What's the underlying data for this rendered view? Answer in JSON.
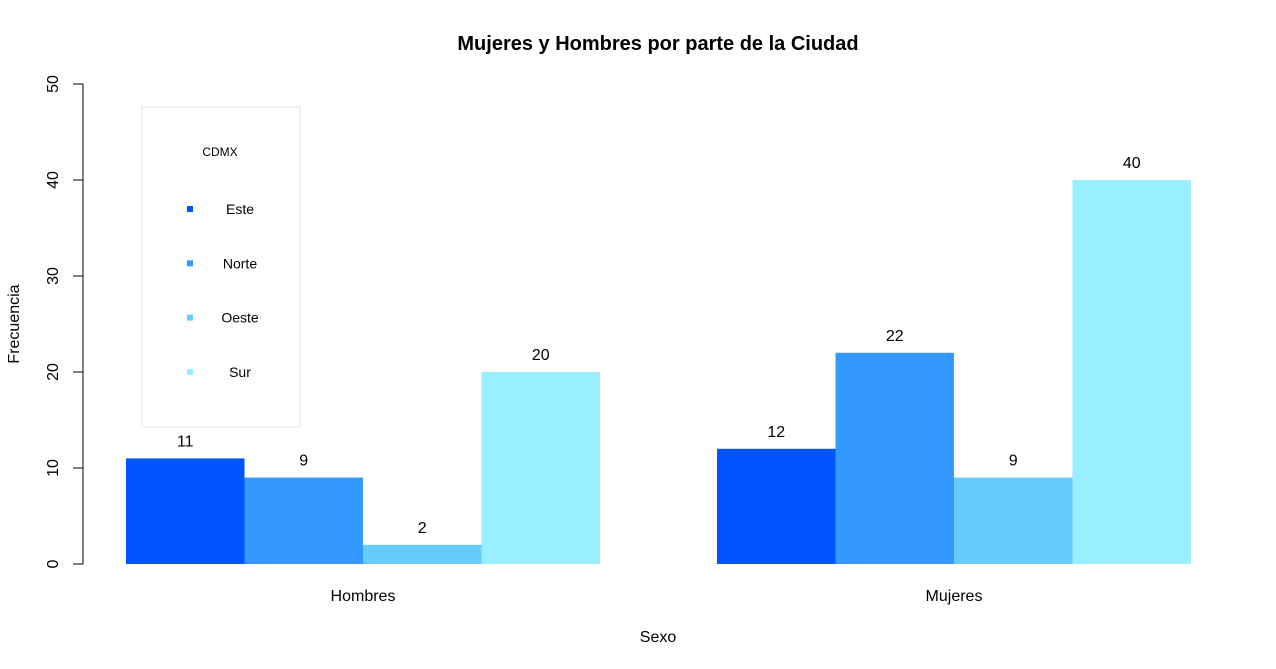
{
  "chart_data": {
    "type": "bar",
    "title": "Mujeres y Hombres por parte de la Ciudad",
    "xlabel": "Sexo",
    "ylabel": "Frecuencia",
    "categories": [
      "Hombres",
      "Mujeres"
    ],
    "series": [
      {
        "name": "Este",
        "values": [
          11,
          12
        ],
        "color": "#0055ff"
      },
      {
        "name": "Norte",
        "values": [
          9,
          22
        ],
        "color": "#3399ff"
      },
      {
        "name": "Oeste",
        "values": [
          2,
          9
        ],
        "color": "#66ccff"
      },
      {
        "name": "Sur",
        "values": [
          20,
          40
        ],
        "color": "#99eeff"
      }
    ],
    "ylim": [
      0,
      50
    ],
    "yticks": [
      0,
      10,
      20,
      30,
      40,
      50
    ],
    "legend": {
      "title": "CDMX",
      "placement": "top-left"
    },
    "grid": false
  }
}
